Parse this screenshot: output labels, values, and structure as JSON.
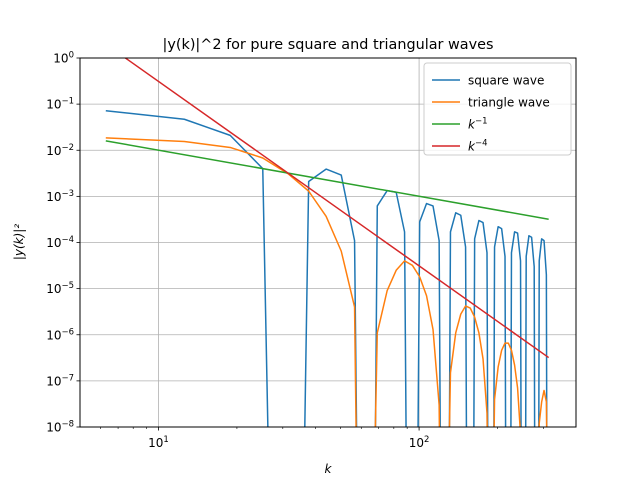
{
  "chart_data": {
    "type": "line",
    "title": "|y(k)|^2 for pure square and triangular waves",
    "xlabel": "k",
    "ylabel": "|y(k)|²",
    "xscale": "log",
    "yscale": "log",
    "xlim": [
      5,
      400
    ],
    "ylim": [
      1e-08,
      1
    ],
    "grid": true,
    "legend_position": "top-right",
    "x_ticks": [
      {
        "value": 10,
        "base": "10",
        "exp": "1"
      },
      {
        "value": 100,
        "base": "10",
        "exp": "2"
      }
    ],
    "y_ticks": [
      {
        "value": 1,
        "base": "10",
        "exp": "0"
      },
      {
        "value": 0.1,
        "base": "10",
        "exp": "−1"
      },
      {
        "value": 0.01,
        "base": "10",
        "exp": "−2"
      },
      {
        "value": 0.001,
        "base": "10",
        "exp": "−3"
      },
      {
        "value": 0.0001,
        "base": "10",
        "exp": "−4"
      },
      {
        "value": 1e-05,
        "base": "10",
        "exp": "−5"
      },
      {
        "value": 1e-06,
        "base": "10",
        "exp": "−6"
      },
      {
        "value": 1e-07,
        "base": "10",
        "exp": "−7"
      },
      {
        "value": 1e-08,
        "base": "10",
        "exp": "−8"
      }
    ],
    "series": [
      {
        "name": "square wave",
        "color": "#1f77b4",
        "points": [
          [
            6.28,
            0.072
          ],
          [
            12.57,
            0.047
          ],
          [
            18.85,
            0.021
          ],
          [
            25.13,
            0.004
          ],
          [
            26.5,
            1e-09
          ],
          [
            36.2,
            1e-09
          ],
          [
            37.7,
            0.0021
          ],
          [
            43.98,
            0.0039
          ],
          [
            50.27,
            0.0029
          ],
          [
            56.55,
            0.00011
          ],
          [
            57.8,
            1e-09
          ],
          [
            67.8,
            1e-09
          ],
          [
            69.12,
            0.00062
          ],
          [
            75.4,
            0.00133
          ],
          [
            81.68,
            0.00123
          ],
          [
            87.96,
            0.00017
          ],
          [
            89.4,
            1e-09
          ],
          [
            98.8,
            1e-09
          ],
          [
            100.53,
            0.00028
          ],
          [
            106.81,
            0.0007
          ],
          [
            113.1,
            0.00062
          ],
          [
            119.38,
            0.00011
          ],
          [
            120.8,
            1e-09
          ],
          [
            130.5,
            1e-09
          ],
          [
            131.95,
            0.00017
          ],
          [
            138.23,
            0.00044
          ],
          [
            144.51,
            0.00039
          ],
          [
            150.8,
            8e-05
          ],
          [
            152.2,
            1e-09
          ],
          [
            162,
            1e-09
          ],
          [
            163.36,
            0.00012
          ],
          [
            169.65,
            0.0003
          ],
          [
            175.93,
            0.00027
          ],
          [
            182.21,
            6e-05
          ],
          [
            183.6,
            1e-09
          ],
          [
            193.4,
            1e-09
          ],
          [
            194.78,
            8e-05
          ],
          [
            201.06,
            0.00022
          ],
          [
            207.35,
            0.0002
          ],
          [
            213.63,
            5e-05
          ],
          [
            215,
            1e-09
          ],
          [
            224.8,
            1e-09
          ],
          [
            226.19,
            6e-05
          ],
          [
            232.48,
            0.00017
          ],
          [
            238.76,
            0.00016
          ],
          [
            245.04,
            4e-05
          ],
          [
            246.4,
            1e-09
          ],
          [
            256.2,
            1e-09
          ],
          [
            257.61,
            5e-05
          ],
          [
            263.89,
            0.00014
          ],
          [
            270.18,
            0.00013
          ],
          [
            276.46,
            3e-05
          ],
          [
            277.8,
            1e-09
          ],
          [
            287.7,
            1e-09
          ],
          [
            289.03,
            4e-05
          ],
          [
            295.31,
            0.00012
          ],
          [
            301.59,
            0.00011
          ],
          [
            307.88,
            2e-05
          ],
          [
            309.2,
            1e-09
          ]
        ]
      },
      {
        "name": "triangle wave",
        "color": "#ff7f0e",
        "points": [
          [
            6.28,
            0.0185
          ],
          [
            12.57,
            0.0155
          ],
          [
            18.85,
            0.0115
          ],
          [
            25.13,
            0.0068
          ],
          [
            31.42,
            0.0031
          ],
          [
            37.7,
            0.0013
          ],
          [
            43.98,
            0.00037
          ],
          [
            50.27,
            6.5e-05
          ],
          [
            56.55,
            4e-06
          ],
          [
            57.6,
            1e-09
          ],
          [
            67.4,
            1e-09
          ],
          [
            69.12,
            1.1e-06
          ],
          [
            75.4,
            9e-06
          ],
          [
            81.68,
            2.5e-05
          ],
          [
            87.96,
            4e-05
          ],
          [
            94.25,
            3.2e-05
          ],
          [
            100.53,
            1.8e-05
          ],
          [
            106.81,
            7e-06
          ],
          [
            113.1,
            1.3e-06
          ],
          [
            119.38,
            3e-08
          ],
          [
            120.2,
            1e-09
          ],
          [
            129.8,
            1e-09
          ],
          [
            131.95,
            1.5e-07
          ],
          [
            138.23,
            1.1e-06
          ],
          [
            144.51,
            2.8e-06
          ],
          [
            150.8,
            4.2e-06
          ],
          [
            157.08,
            3.8e-06
          ],
          [
            163.36,
            2.4e-06
          ],
          [
            169.65,
            1.1e-06
          ],
          [
            175.93,
            3e-07
          ],
          [
            182.21,
            2e-08
          ],
          [
            183.5,
            1e-09
          ],
          [
            193,
            1e-09
          ],
          [
            194.78,
            4e-08
          ],
          [
            201.06,
            2e-07
          ],
          [
            207.35,
            4.6e-07
          ],
          [
            213.63,
            6.6e-07
          ],
          [
            219.91,
            6.6e-07
          ],
          [
            226.19,
            4.6e-07
          ],
          [
            232.48,
            2.2e-07
          ],
          [
            238.76,
            7e-08
          ],
          [
            245.04,
            7e-09
          ],
          [
            246.3,
            1e-09
          ],
          [
            287.5,
            1e-09
          ],
          [
            289.03,
            1.2e-08
          ],
          [
            295.31,
            3.5e-08
          ],
          [
            301.59,
            6.2e-08
          ],
          [
            307.88,
            3.5e-08
          ],
          [
            310,
            1e-09
          ]
        ]
      },
      {
        "name": "k^{-1}",
        "legend_base": "k",
        "legend_exp": "−1",
        "color": "#2ca02c",
        "points": [
          [
            6.28,
            0.016
          ],
          [
            314.16,
            0.00032
          ]
        ]
      },
      {
        "name": "k^{-4}",
        "legend_base": "k",
        "legend_exp": "−4",
        "color": "#d62728",
        "points": [
          [
            6.28,
            2.0
          ],
          [
            314.16,
            3.2e-07
          ]
        ]
      }
    ]
  }
}
